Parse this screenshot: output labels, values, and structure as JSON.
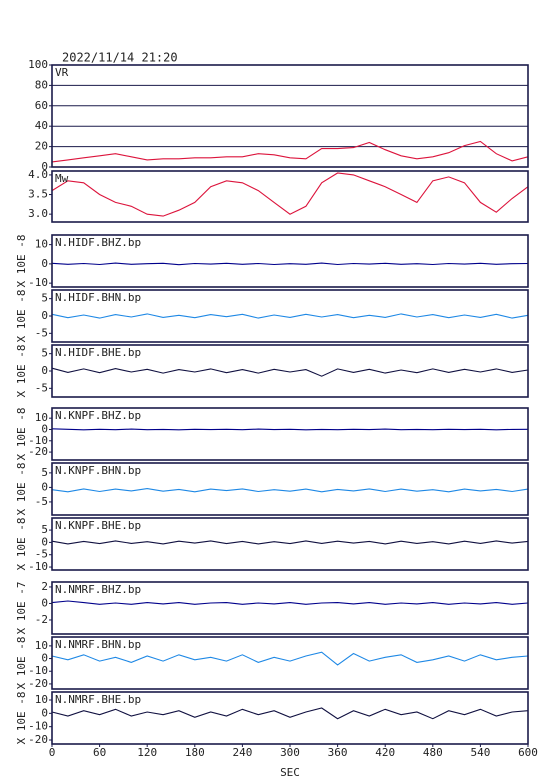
{
  "chart_data": [
    {
      "type": "line",
      "title": "2022/11/14 21:20",
      "label": "VR",
      "color": "#dc143c",
      "grid": true,
      "xlim": [
        0,
        600
      ],
      "ylim": [
        0,
        100
      ],
      "yticks": [
        0,
        20,
        40,
        60,
        80,
        100
      ],
      "x": [
        0,
        20,
        40,
        60,
        80,
        100,
        120,
        140,
        160,
        180,
        200,
        220,
        240,
        260,
        280,
        300,
        320,
        340,
        360,
        380,
        400,
        420,
        440,
        460,
        480,
        500,
        520,
        540,
        560,
        580,
        600
      ],
      "values": [
        5,
        7,
        9,
        11,
        13,
        10,
        7,
        8,
        8,
        9,
        9,
        10,
        10,
        13,
        12,
        9,
        8,
        18,
        18,
        19,
        24,
        17,
        11,
        8,
        10,
        14,
        21,
        25,
        13,
        6,
        10
      ]
    },
    {
      "type": "line",
      "label": "Mw",
      "color": "#dc143c",
      "grid": false,
      "xlim": [
        0,
        600
      ],
      "ylim": [
        2.8,
        4.1
      ],
      "yticks": [
        {
          "value": 3,
          "label": "3.0"
        },
        3.5,
        {
          "value": 4,
          "label": "4.0"
        }
      ],
      "x": [
        0,
        20,
        40,
        60,
        80,
        100,
        120,
        140,
        160,
        180,
        200,
        220,
        240,
        260,
        280,
        300,
        320,
        340,
        360,
        380,
        400,
        420,
        440,
        460,
        480,
        500,
        520,
        540,
        560,
        580,
        600
      ],
      "values": [
        3.6,
        3.85,
        3.8,
        3.5,
        3.3,
        3.2,
        3.0,
        2.95,
        3.1,
        3.3,
        3.7,
        3.85,
        3.8,
        3.6,
        3.3,
        3.0,
        3.2,
        3.8,
        4.05,
        4.0,
        3.85,
        3.7,
        3.5,
        3.3,
        3.85,
        3.95,
        3.8,
        3.3,
        3.05,
        3.4,
        3.7
      ]
    },
    {
      "type": "line",
      "label": "N.HIDF.BHZ.bp",
      "ylabel": "X 10E -8",
      "color": "#00008b",
      "grid": false,
      "xlim": [
        0,
        600
      ],
      "ylim": [
        -12,
        15
      ],
      "yticks": [
        -10,
        0,
        10
      ],
      "x": [
        0,
        20,
        40,
        60,
        80,
        100,
        120,
        140,
        160,
        180,
        200,
        220,
        240,
        260,
        280,
        300,
        320,
        340,
        360,
        380,
        400,
        420,
        440,
        460,
        480,
        500,
        520,
        540,
        560,
        580,
        600
      ],
      "values": [
        0.3,
        -0.2,
        0.2,
        -0.3,
        0.4,
        -0.2,
        0.1,
        0.3,
        -0.4,
        0.2,
        -0.1,
        0.3,
        -0.2,
        0.2,
        -0.3,
        0.1,
        -0.2,
        0.4,
        -0.3,
        0.2,
        -0.1,
        0.3,
        -0.2,
        0.1,
        -0.3,
        0.2,
        -0.1,
        0.3,
        -0.2,
        0.1,
        0.2
      ]
    },
    {
      "type": "line",
      "label": "N.HIDF.BHN.bp",
      "ylabel": "X 10E -8",
      "color": "#1e88e5",
      "grid": false,
      "xlim": [
        0,
        600
      ],
      "ylim": [
        -7.5,
        7.5
      ],
      "yticks": [
        -5,
        0,
        5
      ],
      "x": [
        0,
        20,
        40,
        60,
        80,
        100,
        120,
        140,
        160,
        180,
        200,
        220,
        240,
        260,
        280,
        300,
        320,
        340,
        360,
        380,
        400,
        420,
        440,
        460,
        480,
        500,
        520,
        540,
        560,
        580,
        600
      ],
      "values": [
        0.5,
        -0.5,
        0.3,
        -0.6,
        0.4,
        -0.3,
        0.6,
        -0.4,
        0.2,
        -0.5,
        0.4,
        -0.2,
        0.5,
        -0.6,
        0.3,
        -0.4,
        0.5,
        -0.3,
        0.4,
        -0.5,
        0.2,
        -0.4,
        0.6,
        -0.3,
        0.4,
        -0.5,
        0.3,
        -0.4,
        0.5,
        -0.6,
        0.2
      ]
    },
    {
      "type": "line",
      "label": "N.HIDF.BHE.bp",
      "ylabel": "X 10E -8",
      "color": "#101040",
      "grid": false,
      "xlim": [
        0,
        600
      ],
      "ylim": [
        -7.5,
        7.5
      ],
      "yticks": [
        -5,
        0,
        5
      ],
      "x": [
        0,
        20,
        40,
        60,
        80,
        100,
        120,
        140,
        160,
        180,
        200,
        220,
        240,
        260,
        280,
        300,
        320,
        340,
        360,
        380,
        400,
        420,
        440,
        460,
        480,
        500,
        520,
        540,
        560,
        580,
        600
      ],
      "values": [
        0.8,
        -0.4,
        0.6,
        -0.5,
        0.7,
        -0.3,
        0.5,
        -0.6,
        0.4,
        -0.3,
        0.6,
        -0.5,
        0.4,
        -0.6,
        0.5,
        -0.3,
        0.4,
        -1.5,
        0.6,
        -0.4,
        0.5,
        -0.6,
        0.3,
        -0.5,
        0.6,
        -0.4,
        0.5,
        -0.3,
        0.6,
        -0.4,
        0.3
      ]
    },
    {
      "type": "line",
      "label": "N.KNPF.BHZ.bp",
      "ylabel": "X 10E -8",
      "color": "#00008b",
      "grid": false,
      "xlim": [
        0,
        600
      ],
      "ylim": [
        -27,
        19
      ],
      "yticks": [
        -20,
        -10,
        0,
        10
      ],
      "x": [
        0,
        20,
        40,
        60,
        80,
        100,
        120,
        140,
        160,
        180,
        200,
        220,
        240,
        260,
        280,
        300,
        320,
        340,
        360,
        380,
        400,
        420,
        440,
        460,
        480,
        500,
        520,
        540,
        560,
        580,
        600
      ],
      "values": [
        0.6,
        0.2,
        -0.3,
        0.2,
        -0.2,
        0.3,
        -0.2,
        0.1,
        -0.3,
        0.2,
        -0.1,
        0.2,
        -0.2,
        0.3,
        -0.1,
        0.2,
        -0.3,
        0.1,
        -0.2,
        0.2,
        -0.1,
        0.3,
        -0.2,
        0.1,
        -0.2,
        0.2,
        -0.1,
        0.2,
        -0.3,
        0.1,
        0.2
      ]
    },
    {
      "type": "line",
      "label": "N.KNPF.BHN.bp",
      "ylabel": "X 10E -8",
      "color": "#1e88e5",
      "grid": false,
      "xlim": [
        0,
        600
      ],
      "ylim": [
        -9.5,
        8.4
      ],
      "yticks": [
        -5,
        0,
        5
      ],
      "x": [
        0,
        20,
        40,
        60,
        80,
        100,
        120,
        140,
        160,
        180,
        200,
        220,
        240,
        260,
        280,
        300,
        320,
        340,
        360,
        380,
        400,
        420,
        440,
        460,
        480,
        500,
        520,
        540,
        560,
        580,
        600
      ],
      "values": [
        -0.8,
        -1.5,
        -0.5,
        -1.4,
        -0.6,
        -1.2,
        -0.4,
        -1.3,
        -0.7,
        -1.5,
        -0.6,
        -1.1,
        -0.5,
        -1.4,
        -0.8,
        -1.3,
        -0.6,
        -1.5,
        -0.7,
        -1.2,
        -0.5,
        -1.4,
        -0.6,
        -1.3,
        -0.8,
        -1.5,
        -0.6,
        -1.2,
        -0.7,
        -1.4,
        -0.6
      ]
    },
    {
      "type": "line",
      "label": "N.KNPF.BHE.bp",
      "ylabel": "X 10E -8",
      "color": "#101040",
      "grid": false,
      "xlim": [
        0,
        600
      ],
      "ylim": [
        -11.2,
        9.9
      ],
      "yticks": [
        -10,
        -5,
        0,
        5
      ],
      "x": [
        0,
        20,
        40,
        60,
        80,
        100,
        120,
        140,
        160,
        180,
        200,
        220,
        240,
        260,
        280,
        300,
        320,
        340,
        360,
        380,
        400,
        420,
        440,
        460,
        480,
        500,
        520,
        540,
        560,
        580,
        600
      ],
      "values": [
        0.5,
        -0.6,
        0.4,
        -0.5,
        0.6,
        -0.4,
        0.3,
        -0.6,
        0.5,
        -0.3,
        0.6,
        -0.5,
        0.4,
        -0.6,
        0.3,
        -0.5,
        0.6,
        -0.4,
        0.5,
        -0.3,
        0.4,
        -0.6,
        0.5,
        -0.4,
        0.3,
        -0.6,
        0.5,
        -0.4,
        0.6,
        -0.3,
        0.4
      ]
    },
    {
      "type": "line",
      "label": "N.NMRF.BHZ.bp",
      "ylabel": "X 10E -7",
      "color": "#00008b",
      "grid": false,
      "xlim": [
        0,
        600
      ],
      "ylim": [
        -3.7,
        2.6
      ],
      "yticks": [
        -2,
        0,
        2
      ],
      "x": [
        0,
        20,
        40,
        60,
        80,
        100,
        120,
        140,
        160,
        180,
        200,
        220,
        240,
        260,
        280,
        300,
        320,
        340,
        360,
        380,
        400,
        420,
        440,
        460,
        480,
        500,
        520,
        540,
        560,
        580,
        600
      ],
      "values": [
        0.1,
        0.3,
        0.1,
        -0.1,
        0.05,
        -0.1,
        0.1,
        -0.05,
        0.1,
        -0.1,
        0.05,
        0.1,
        -0.1,
        0.05,
        -0.05,
        0.1,
        -0.1,
        0.05,
        0.1,
        -0.05,
        0.1,
        -0.1,
        0.05,
        -0.05,
        0.1,
        -0.1,
        0.05,
        -0.05,
        0.1,
        -0.1,
        0.05
      ]
    },
    {
      "type": "line",
      "label": "N.NMRF.BHN.bp",
      "ylabel": "X 10E -8",
      "color": "#1e88e5",
      "grid": false,
      "xlim": [
        0,
        600
      ],
      "ylim": [
        -24,
        17
      ],
      "yticks": [
        -20,
        -10,
        0,
        10
      ],
      "x": [
        0,
        20,
        40,
        60,
        80,
        100,
        120,
        140,
        160,
        180,
        200,
        220,
        240,
        260,
        280,
        300,
        320,
        340,
        360,
        380,
        400,
        420,
        440,
        460,
        480,
        500,
        520,
        540,
        560,
        580,
        600
      ],
      "values": [
        2,
        -1,
        3,
        -2,
        1,
        -3,
        2,
        -2,
        3,
        -1,
        1,
        -2,
        3,
        -3,
        1,
        -2,
        2,
        5,
        -5,
        4,
        -2,
        1,
        3,
        -3,
        -1,
        2,
        -2,
        3,
        -1,
        1,
        2
      ]
    },
    {
      "type": "line",
      "label": "N.NMRF.BHE.bp",
      "ylabel": "X 10E -8",
      "color": "#101040",
      "grid": false,
      "xlim": [
        0,
        600
      ],
      "ylim": [
        -23,
        16
      ],
      "yticks": [
        -20,
        -10,
        0,
        10
      ],
      "xlabel": "SEC",
      "xticks": [
        0,
        60,
        120,
        180,
        240,
        300,
        360,
        420,
        480,
        540,
        600
      ],
      "x": [
        0,
        20,
        40,
        60,
        80,
        100,
        120,
        140,
        160,
        180,
        200,
        220,
        240,
        260,
        280,
        300,
        320,
        340,
        360,
        380,
        400,
        420,
        440,
        460,
        480,
        500,
        520,
        540,
        560,
        580,
        600
      ],
      "values": [
        1,
        -2,
        2,
        -1,
        3,
        -2,
        1,
        -1,
        2,
        -3,
        1,
        -2,
        3,
        -1,
        2,
        -3,
        1,
        4,
        -4,
        2,
        -2,
        3,
        -1,
        1,
        -4,
        2,
        -1,
        3,
        -2,
        1,
        2
      ]
    }
  ]
}
